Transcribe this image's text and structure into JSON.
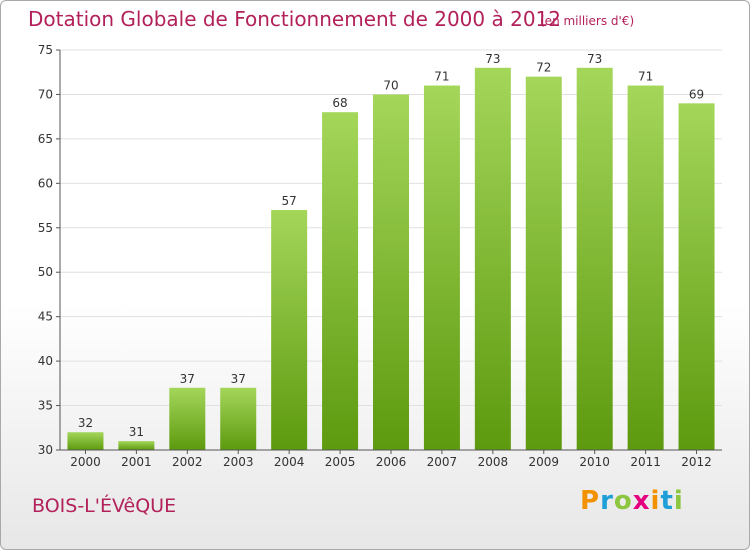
{
  "header": {
    "title": "Dotation Globale de Fonctionnement de 2000 à 2012",
    "unit": "(en milliers d'€)"
  },
  "footer": {
    "commune": "BOIS-L'ÉVêQUE",
    "logo": "Proxiti"
  },
  "colors": {
    "title": "#b2215a",
    "bar_top": "#a4d65a",
    "bar_bottom": "#5d9a0f",
    "grid": "#e0e0e0",
    "axis": "#555555"
  },
  "chart_data": {
    "type": "bar",
    "title": "Dotation Globale de Fonctionnement de 2000 à 2012",
    "subtitle": "(en milliers d'€)",
    "xlabel": "",
    "ylabel": "",
    "categories": [
      "2000",
      "2001",
      "2002",
      "2003",
      "2004",
      "2005",
      "2006",
      "2007",
      "2008",
      "2009",
      "2010",
      "2011",
      "2012"
    ],
    "values": [
      32,
      31,
      37,
      37,
      57,
      68,
      70,
      71,
      73,
      72,
      73,
      71,
      69
    ],
    "ylim": [
      30,
      75
    ],
    "yticks": [
      30,
      35,
      40,
      45,
      50,
      55,
      60,
      65,
      70,
      75
    ],
    "grid": true,
    "data_labels": true
  }
}
